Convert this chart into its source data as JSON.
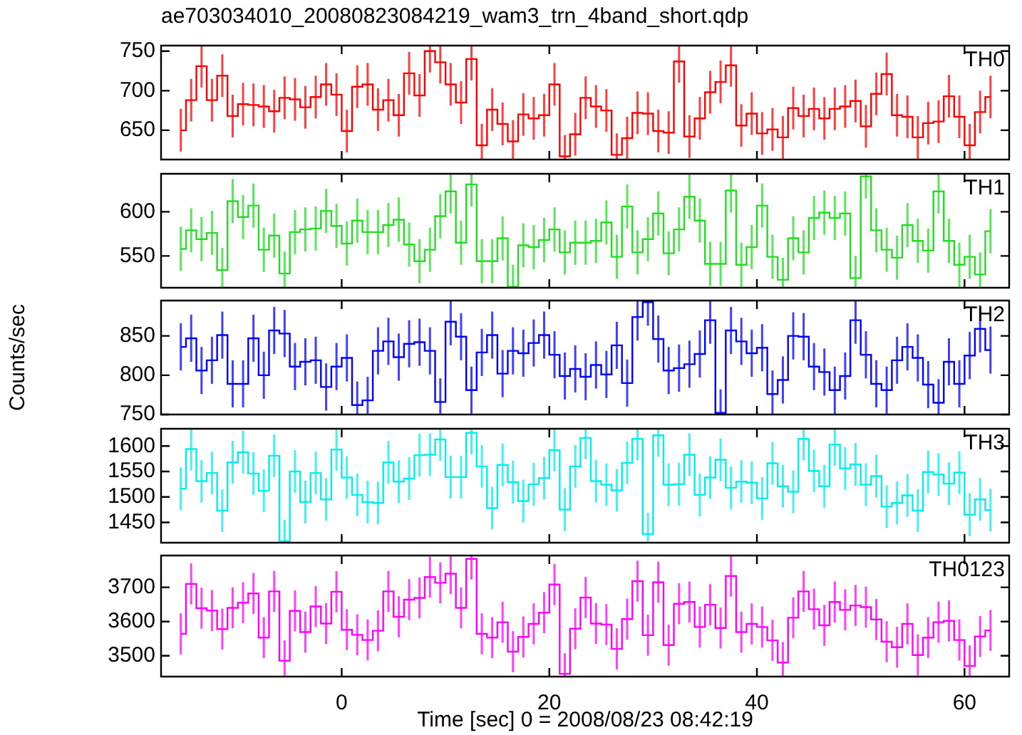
{
  "chart_data": [
    {
      "type": "step",
      "title": "ae703034010_20080823084219_wam3_trn_4band_short.qdp",
      "legend": "top right",
      "tick_labels": "y",
      "xlim": [
        -17.4,
        64.3
      ],
      "xticks": [
        0,
        20,
        40,
        60
      ],
      "ylim": [
        613,
        757
      ],
      "yticks": [
        650,
        700,
        750
      ],
      "x": [
        -15.5,
        -14.5,
        -13.5,
        -12.5,
        -11.5,
        -10.5,
        -9.5,
        -8.5,
        -7.5,
        -6.5,
        -5.5,
        -4.5,
        -3.5,
        -2.5,
        -1.5,
        -0.5,
        0.5,
        1.5,
        2.5,
        3.5,
        4.5,
        5.5,
        6.5,
        7.5,
        8.5,
        9.5,
        10.5,
        11.5,
        12.5,
        13.5,
        14.5,
        15.5,
        16.5,
        17.5,
        18.5,
        19.5,
        20.5,
        21.5,
        22.5,
        23.5,
        24.5,
        25.5,
        26.5,
        27.5,
        28.5,
        29.5,
        30.5,
        31.5,
        32.5,
        33.5,
        34.5,
        35.5,
        36.5,
        37.5,
        38.5,
        39.5,
        40.5,
        41.5,
        42.5,
        43.5,
        44.5,
        45.5,
        46.5,
        47.5,
        48.5,
        49.5,
        50.5,
        51.5,
        52.5,
        53.5,
        54.5,
        55.5,
        56.5,
        57.5,
        58.5,
        59.5,
        60.5,
        61.5,
        62.5
      ],
      "series": [
        {
          "name": "TH0",
          "color": "#ff0000",
          "values": [
            650,
            688,
            731,
            688,
            719,
            668,
            683,
            682,
            680,
            674,
            691,
            689,
            679,
            692,
            708,
            695,
            649,
            705,
            708,
            676,
            688,
            669,
            722,
            694,
            750,
            736,
            708,
            685,
            740,
            631,
            676,
            658,
            636,
            670,
            665,
            669,
            708,
            617,
            645,
            691,
            680,
            675,
            619,
            640,
            672,
            671,
            649,
            647,
            737,
            642,
            665,
            698,
            711,
            732,
            656,
            671,
            646,
            651,
            641,
            678,
            668,
            677,
            665,
            677,
            680,
            687,
            655,
            696,
            721,
            669,
            667,
            641,
            659,
            661,
            693,
            667,
            631,
            673,
            692
          ],
          "errors": [
            27,
            27,
            27,
            27,
            27,
            27,
            27,
            27,
            27,
            27,
            27,
            27,
            27,
            27,
            27,
            27,
            27,
            27,
            27,
            27,
            27,
            27,
            27,
            27,
            27,
            27,
            27,
            27,
            27,
            27,
            27,
            27,
            27,
            27,
            27,
            27,
            27,
            27,
            27,
            27,
            27,
            27,
            27,
            27,
            27,
            27,
            27,
            27,
            27,
            27,
            27,
            27,
            27,
            27,
            27,
            27,
            27,
            27,
            27,
            27,
            27,
            27,
            27,
            27,
            27,
            27,
            27,
            27,
            27,
            27,
            27,
            27,
            27,
            27,
            27,
            27,
            27,
            27,
            27
          ]
        }
      ]
    },
    {
      "type": "step",
      "legend": "top right",
      "tick_labels": "y",
      "xlim": [
        -17.4,
        64.3
      ],
      "xticks": [
        0,
        20,
        40,
        60
      ],
      "ylim": [
        514,
        643
      ],
      "yticks": [
        550,
        600
      ],
      "x": [
        -15.5,
        -14.5,
        -13.5,
        -12.5,
        -11.5,
        -10.5,
        -9.5,
        -8.5,
        -7.5,
        -6.5,
        -5.5,
        -4.5,
        -3.5,
        -2.5,
        -1.5,
        -0.5,
        0.5,
        1.5,
        2.5,
        3.5,
        4.5,
        5.5,
        6.5,
        7.5,
        8.5,
        9.5,
        10.5,
        11.5,
        12.5,
        13.5,
        14.5,
        15.5,
        16.5,
        17.5,
        18.5,
        19.5,
        20.5,
        21.5,
        22.5,
        23.5,
        24.5,
        25.5,
        26.5,
        27.5,
        28.5,
        29.5,
        30.5,
        31.5,
        32.5,
        33.5,
        34.5,
        35.5,
        36.5,
        37.5,
        38.5,
        39.5,
        40.5,
        41.5,
        42.5,
        43.5,
        44.5,
        45.5,
        46.5,
        47.5,
        48.5,
        49.5,
        50.5,
        51.5,
        52.5,
        53.5,
        54.5,
        55.5,
        56.5,
        57.5,
        58.5,
        59.5,
        60.5,
        61.5,
        62.5
      ],
      "series": [
        {
          "name": "TH1",
          "color": "#22dd22",
          "values": [
            558,
            579,
            569,
            576,
            534,
            612,
            594,
            607,
            557,
            573,
            530,
            577,
            580,
            581,
            601,
            584,
            564,
            590,
            577,
            577,
            585,
            591,
            563,
            544,
            557,
            595,
            623,
            565,
            631,
            544,
            544,
            570,
            515,
            562,
            560,
            568,
            580,
            554,
            565,
            565,
            567,
            588,
            549,
            606,
            554,
            569,
            598,
            553,
            580,
            617,
            590,
            541,
            541,
            624,
            540,
            560,
            607,
            549,
            523,
            570,
            554,
            593,
            599,
            593,
            598,
            525,
            640,
            579,
            557,
            548,
            585,
            567,
            556,
            623,
            567,
            540,
            549,
            529,
            578
          ],
          "errors": [
            25,
            25,
            25,
            25,
            25,
            25,
            25,
            25,
            25,
            25,
            25,
            25,
            25,
            25,
            25,
            25,
            25,
            25,
            25,
            25,
            25,
            25,
            25,
            25,
            25,
            25,
            25,
            25,
            25,
            25,
            25,
            25,
            25,
            25,
            25,
            25,
            25,
            25,
            25,
            25,
            25,
            25,
            25,
            25,
            25,
            25,
            25,
            25,
            25,
            25,
            25,
            25,
            25,
            25,
            25,
            25,
            25,
            25,
            25,
            25,
            25,
            25,
            25,
            25,
            25,
            25,
            25,
            25,
            25,
            25,
            25,
            25,
            25,
            25,
            25,
            25,
            25,
            25,
            25
          ]
        }
      ]
    },
    {
      "type": "step",
      "legend": "top right",
      "tick_labels": "y",
      "ylabel": "Counts/sec",
      "xlim": [
        -17.4,
        64.3
      ],
      "xticks": [
        0,
        20,
        40,
        60
      ],
      "ylim": [
        750,
        895
      ],
      "yticks": [
        750,
        800,
        850
      ],
      "x": [
        -15.5,
        -14.5,
        -13.5,
        -12.5,
        -11.5,
        -10.5,
        -9.5,
        -8.5,
        -7.5,
        -6.5,
        -5.5,
        -4.5,
        -3.5,
        -2.5,
        -1.5,
        -0.5,
        0.5,
        1.5,
        2.5,
        3.5,
        4.5,
        5.5,
        6.5,
        7.5,
        8.5,
        9.5,
        10.5,
        11.5,
        12.5,
        13.5,
        14.5,
        15.5,
        16.5,
        17.5,
        18.5,
        19.5,
        20.5,
        21.5,
        22.5,
        23.5,
        24.5,
        25.5,
        26.5,
        27.5,
        28.5,
        29.5,
        30.5,
        31.5,
        32.5,
        33.5,
        34.5,
        35.5,
        36.5,
        37.5,
        38.5,
        39.5,
        40.5,
        41.5,
        42.5,
        43.5,
        44.5,
        45.5,
        46.5,
        47.5,
        48.5,
        49.5,
        50.5,
        51.5,
        52.5,
        53.5,
        54.5,
        55.5,
        56.5,
        57.5,
        58.5,
        59.5,
        60.5,
        61.5,
        62.5
      ],
      "series": [
        {
          "name": "TH2",
          "color": "#0000ff",
          "values": [
            836,
            847,
            806,
            819,
            851,
            789,
            789,
            847,
            800,
            857,
            853,
            811,
            817,
            819,
            785,
            811,
            822,
            762,
            768,
            831,
            843,
            823,
            840,
            842,
            831,
            766,
            868,
            849,
            781,
            829,
            851,
            802,
            831,
            828,
            841,
            851,
            826,
            799,
            808,
            798,
            813,
            801,
            838,
            790,
            874,
            893,
            846,
            806,
            809,
            814,
            827,
            870,
            752,
            857,
            843,
            828,
            835,
            776,
            794,
            850,
            849,
            811,
            804,
            781,
            799,
            870,
            826,
            789,
            781,
            819,
            836,
            822,
            788,
            765,
            817,
            789,
            825,
            859,
            832
          ],
          "errors": [
            30,
            30,
            30,
            30,
            30,
            30,
            30,
            30,
            30,
            30,
            30,
            30,
            30,
            30,
            30,
            30,
            30,
            30,
            30,
            30,
            30,
            30,
            30,
            30,
            30,
            30,
            30,
            30,
            30,
            30,
            30,
            30,
            30,
            30,
            30,
            30,
            30,
            30,
            30,
            30,
            30,
            30,
            30,
            30,
            30,
            30,
            30,
            30,
            30,
            30,
            30,
            30,
            30,
            30,
            30,
            30,
            30,
            30,
            30,
            30,
            30,
            30,
            30,
            30,
            30,
            30,
            30,
            30,
            30,
            30,
            30,
            30,
            30,
            30,
            30,
            30,
            30,
            30,
            30
          ]
        }
      ]
    },
    {
      "type": "step",
      "legend": "top right",
      "tick_labels": "y",
      "xlim": [
        -17.4,
        64.3
      ],
      "xticks": [
        0,
        20,
        40,
        60
      ],
      "ylim": [
        1410,
        1634
      ],
      "yticks": [
        1450,
        1500,
        1550,
        1600
      ],
      "x": [
        -15.5,
        -14.5,
        -13.5,
        -12.5,
        -11.5,
        -10.5,
        -9.5,
        -8.5,
        -7.5,
        -6.5,
        -5.5,
        -4.5,
        -3.5,
        -2.5,
        -1.5,
        -0.5,
        0.5,
        1.5,
        2.5,
        3.5,
        4.5,
        5.5,
        6.5,
        7.5,
        8.5,
        9.5,
        10.5,
        11.5,
        12.5,
        13.5,
        14.5,
        15.5,
        16.5,
        17.5,
        18.5,
        19.5,
        20.5,
        21.5,
        22.5,
        23.5,
        24.5,
        25.5,
        26.5,
        27.5,
        28.5,
        29.5,
        30.5,
        31.5,
        32.5,
        33.5,
        34.5,
        35.5,
        36.5,
        37.5,
        38.5,
        39.5,
        40.5,
        41.5,
        42.5,
        43.5,
        44.5,
        45.5,
        46.5,
        47.5,
        48.5,
        49.5,
        50.5,
        51.5,
        52.5,
        53.5,
        54.5,
        55.5,
        56.5,
        57.5,
        58.5,
        59.5,
        60.5,
        61.5,
        62.5
      ],
      "series": [
        {
          "name": "TH3",
          "color": "#00eeee",
          "values": [
            1516,
            1594,
            1531,
            1547,
            1473,
            1568,
            1588,
            1546,
            1512,
            1581,
            1413,
            1550,
            1490,
            1547,
            1495,
            1593,
            1538,
            1504,
            1490,
            1488,
            1568,
            1530,
            1536,
            1582,
            1583,
            1613,
            1539,
            1539,
            1626,
            1560,
            1478,
            1563,
            1529,
            1492,
            1525,
            1537,
            1592,
            1475,
            1560,
            1616,
            1531,
            1524,
            1513,
            1567,
            1614,
            1427,
            1621,
            1524,
            1525,
            1583,
            1504,
            1538,
            1573,
            1518,
            1530,
            1528,
            1497,
            1566,
            1521,
            1510,
            1614,
            1551,
            1521,
            1603,
            1556,
            1564,
            1524,
            1541,
            1481,
            1488,
            1503,
            1473,
            1549,
            1544,
            1526,
            1548,
            1465,
            1495,
            1474
          ],
          "errors": [
            42,
            42,
            42,
            42,
            42,
            42,
            42,
            42,
            42,
            42,
            42,
            42,
            42,
            42,
            42,
            42,
            42,
            42,
            42,
            42,
            42,
            42,
            42,
            42,
            42,
            42,
            42,
            42,
            42,
            42,
            42,
            42,
            42,
            42,
            42,
            42,
            42,
            42,
            42,
            42,
            42,
            42,
            42,
            42,
            42,
            42,
            42,
            42,
            42,
            42,
            42,
            42,
            42,
            42,
            42,
            42,
            42,
            42,
            42,
            42,
            42,
            42,
            42,
            42,
            42,
            42,
            42,
            42,
            42,
            42,
            42,
            42,
            42,
            42,
            42,
            42,
            42,
            42,
            42
          ]
        }
      ]
    },
    {
      "type": "step",
      "legend": "top right",
      "xlabel": "Time [sec] 0 = 2008/08/23 08:42:19",
      "xlim": [
        -17.4,
        64.3
      ],
      "xticks": [
        0,
        20,
        40,
        60
      ],
      "ylim": [
        3439,
        3793
      ],
      "yticks": [
        3500,
        3600,
        3700
      ],
      "x": [
        -15.5,
        -14.5,
        -13.5,
        -12.5,
        -11.5,
        -10.5,
        -9.5,
        -8.5,
        -7.5,
        -6.5,
        -5.5,
        -4.5,
        -3.5,
        -2.5,
        -1.5,
        -0.5,
        0.5,
        1.5,
        2.5,
        3.5,
        4.5,
        5.5,
        6.5,
        7.5,
        8.5,
        9.5,
        10.5,
        11.5,
        12.5,
        13.5,
        14.5,
        15.5,
        16.5,
        17.5,
        18.5,
        19.5,
        20.5,
        21.5,
        22.5,
        23.5,
        24.5,
        25.5,
        26.5,
        27.5,
        28.5,
        29.5,
        30.5,
        31.5,
        32.5,
        33.5,
        34.5,
        35.5,
        36.5,
        37.5,
        38.5,
        39.5,
        40.5,
        41.5,
        42.5,
        43.5,
        44.5,
        45.5,
        46.5,
        47.5,
        48.5,
        49.5,
        50.5,
        51.5,
        52.5,
        53.5,
        54.5,
        55.5,
        56.5,
        57.5,
        58.5,
        59.5,
        60.5,
        61.5,
        62.5
      ],
      "series": [
        {
          "name": "TH0123",
          "color": "#ff00ff",
          "values": [
            3564,
            3710,
            3639,
            3632,
            3578,
            3640,
            3655,
            3682,
            3553,
            3688,
            3485,
            3631,
            3569,
            3644,
            3594,
            3687,
            3576,
            3561,
            3546,
            3573,
            3688,
            3614,
            3664,
            3669,
            3730,
            3713,
            3740,
            3640,
            3783,
            3564,
            3553,
            3598,
            3512,
            3555,
            3593,
            3626,
            3708,
            3447,
            3579,
            3670,
            3594,
            3591,
            3520,
            3607,
            3718,
            3560,
            3715,
            3531,
            3652,
            3657,
            3584,
            3649,
            3581,
            3733,
            3569,
            3593,
            3584,
            3545,
            3480,
            3611,
            3688,
            3636,
            3589,
            3657,
            3634,
            3647,
            3642,
            3606,
            3541,
            3525,
            3593,
            3502,
            3553,
            3598,
            3602,
            3546,
            3470,
            3556,
            3574
          ],
          "errors": [
            60,
            60,
            60,
            60,
            60,
            60,
            60,
            60,
            60,
            60,
            60,
            60,
            60,
            60,
            60,
            60,
            60,
            60,
            60,
            60,
            60,
            60,
            60,
            60,
            60,
            60,
            60,
            60,
            60,
            60,
            60,
            60,
            60,
            60,
            60,
            60,
            60,
            60,
            60,
            60,
            60,
            60,
            60,
            60,
            60,
            60,
            60,
            60,
            60,
            60,
            60,
            60,
            60,
            60,
            60,
            60,
            60,
            60,
            60,
            60,
            60,
            60,
            60,
            60,
            60,
            60,
            60,
            60,
            60,
            60,
            60,
            60,
            60,
            60,
            60,
            60,
            60,
            60,
            60
          ]
        }
      ]
    }
  ]
}
